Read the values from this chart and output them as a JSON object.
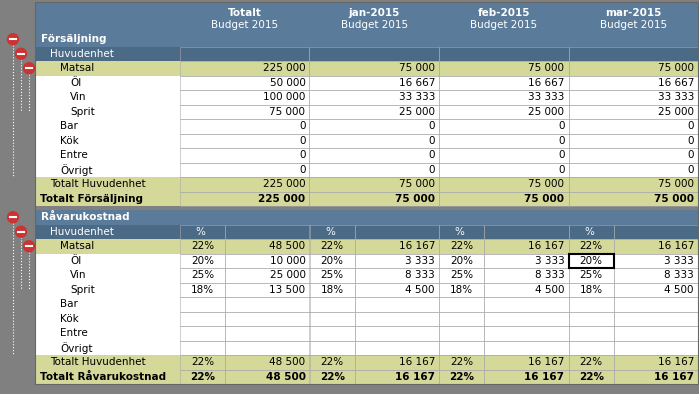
{
  "headers": [
    "",
    "Totalt\nBudget 2015",
    "jan-2015\nBudget 2015",
    "feb-2015\nBudget 2015",
    "mar-2015\nBudget 2015"
  ],
  "section1_title": "Försäljning",
  "section2_title": "Råvarukostnad",
  "rows_s1": [
    {
      "label": "Huvudenhet",
      "indent": 1,
      "values": [
        "",
        "",
        "",
        ""
      ],
      "highlight": false,
      "bold": false,
      "dark": true
    },
    {
      "label": "Matsal",
      "indent": 2,
      "values": [
        "225 000",
        "75 000",
        "75 000",
        "75 000"
      ],
      "highlight": true,
      "bold": false,
      "dark": false
    },
    {
      "label": "Öl",
      "indent": 3,
      "values": [
        "50 000",
        "16 667",
        "16 667",
        "16 667"
      ],
      "highlight": false,
      "bold": false,
      "dark": false
    },
    {
      "label": "Vin",
      "indent": 3,
      "values": [
        "100 000",
        "33 333",
        "33 333",
        "33 333"
      ],
      "highlight": false,
      "bold": false,
      "dark": false
    },
    {
      "label": "Sprit",
      "indent": 3,
      "values": [
        "75 000",
        "25 000",
        "25 000",
        "25 000"
      ],
      "highlight": false,
      "bold": false,
      "dark": false
    },
    {
      "label": "Bar",
      "indent": 2,
      "values": [
        "0",
        "0",
        "0",
        "0"
      ],
      "highlight": false,
      "bold": false,
      "dark": false
    },
    {
      "label": "Kök",
      "indent": 2,
      "values": [
        "0",
        "0",
        "0",
        "0"
      ],
      "highlight": false,
      "bold": false,
      "dark": false
    },
    {
      "label": "Entre",
      "indent": 2,
      "values": [
        "0",
        "0",
        "0",
        "0"
      ],
      "highlight": false,
      "bold": false,
      "dark": false
    },
    {
      "label": "Övrigt",
      "indent": 2,
      "values": [
        "0",
        "0",
        "0",
        "0"
      ],
      "highlight": false,
      "bold": false,
      "dark": false
    },
    {
      "label": "Totalt Huvudenhet",
      "indent": 1,
      "values": [
        "225 000",
        "75 000",
        "75 000",
        "75 000"
      ],
      "highlight": true,
      "bold": false,
      "dark": false
    },
    {
      "label": "Totalt Försäljning",
      "indent": 0,
      "values": [
        "225 000",
        "75 000",
        "75 000",
        "75 000"
      ],
      "highlight": true,
      "bold": true,
      "dark": false
    }
  ],
  "rows_s2": [
    {
      "label": "Huvudenhet",
      "indent": 1,
      "values": [
        "% ",
        "",
        "% ",
        "",
        "% ",
        "",
        "% ",
        ""
      ],
      "highlight": false,
      "bold": false,
      "dark": true,
      "two_col": true
    },
    {
      "label": "Matsal",
      "indent": 2,
      "values": [
        "22%",
        "48 500",
        "22%",
        "16 167",
        "22%",
        "16 167",
        "22%",
        "16 167"
      ],
      "highlight": true,
      "bold": false,
      "dark": false,
      "two_col": true
    },
    {
      "label": "Öl",
      "indent": 3,
      "values": [
        "20%",
        "10 000",
        "20%",
        "3 333",
        "20%",
        "3 333",
        "20%",
        "3 333"
      ],
      "highlight": false,
      "bold": false,
      "dark": false,
      "two_col": true,
      "special_border": true
    },
    {
      "label": "Vin",
      "indent": 3,
      "values": [
        "25%",
        "25 000",
        "25%",
        "8 333",
        "25%",
        "8 333",
        "25%",
        "8 333"
      ],
      "highlight": false,
      "bold": false,
      "dark": false,
      "two_col": true
    },
    {
      "label": "Sprit",
      "indent": 3,
      "values": [
        "18%",
        "13 500",
        "18%",
        "4 500",
        "18%",
        "4 500",
        "18%",
        "4 500"
      ],
      "highlight": false,
      "bold": false,
      "dark": false,
      "two_col": true
    },
    {
      "label": "Bar",
      "indent": 2,
      "values": [
        "",
        "",
        "",
        "",
        "",
        "",
        "",
        ""
      ],
      "highlight": false,
      "bold": false,
      "dark": false,
      "two_col": true
    },
    {
      "label": "Kök",
      "indent": 2,
      "values": [
        "",
        "",
        "",
        "",
        "",
        "",
        "",
        ""
      ],
      "highlight": false,
      "bold": false,
      "dark": false,
      "two_col": true
    },
    {
      "label": "Entre",
      "indent": 2,
      "values": [
        "",
        "",
        "",
        "",
        "",
        "",
        "",
        ""
      ],
      "highlight": false,
      "bold": false,
      "dark": false,
      "two_col": true
    },
    {
      "label": "Övrigt",
      "indent": 2,
      "values": [
        "",
        "",
        "",
        "",
        "",
        "",
        "",
        ""
      ],
      "highlight": false,
      "bold": false,
      "dark": false,
      "two_col": true
    },
    {
      "label": "Totalt Huvudenhet",
      "indent": 1,
      "values": [
        "22%",
        "48 500",
        "22%",
        "16 167",
        "22%",
        "16 167",
        "22%",
        "16 167"
      ],
      "highlight": true,
      "bold": false,
      "dark": false,
      "two_col": true
    },
    {
      "label": "Totalt Råvarukostnad",
      "indent": 0,
      "values": [
        "22%",
        "48 500",
        "22%",
        "16 167",
        "22%",
        "16 167",
        "22%",
        "16 167"
      ],
      "highlight": true,
      "bold": true,
      "dark": false,
      "two_col": true
    }
  ],
  "col_header_bg": "#5b7b9a",
  "col_header_fg": "#ffffff",
  "section_header_bg": "#5b7b9a",
  "section_header_fg": "#ffffff",
  "row_dark_bg": "#4a6a85",
  "row_dark_fg": "#ffffff",
  "row_highlight_bg": "#d4d898",
  "row_highlight_fg": "#000000",
  "row_normal_bg": "#ffffff",
  "row_normal_fg": "#000000",
  "row_bold_bg": "#d4d898",
  "row_bold_fg": "#000000",
  "sidebar_bg": "#808080",
  "icon_color": "#cc3333",
  "border_color": "#aaaaaa",
  "fig_bg": "#808080",
  "font_size": 7.5,
  "header_font_size": 7.5
}
